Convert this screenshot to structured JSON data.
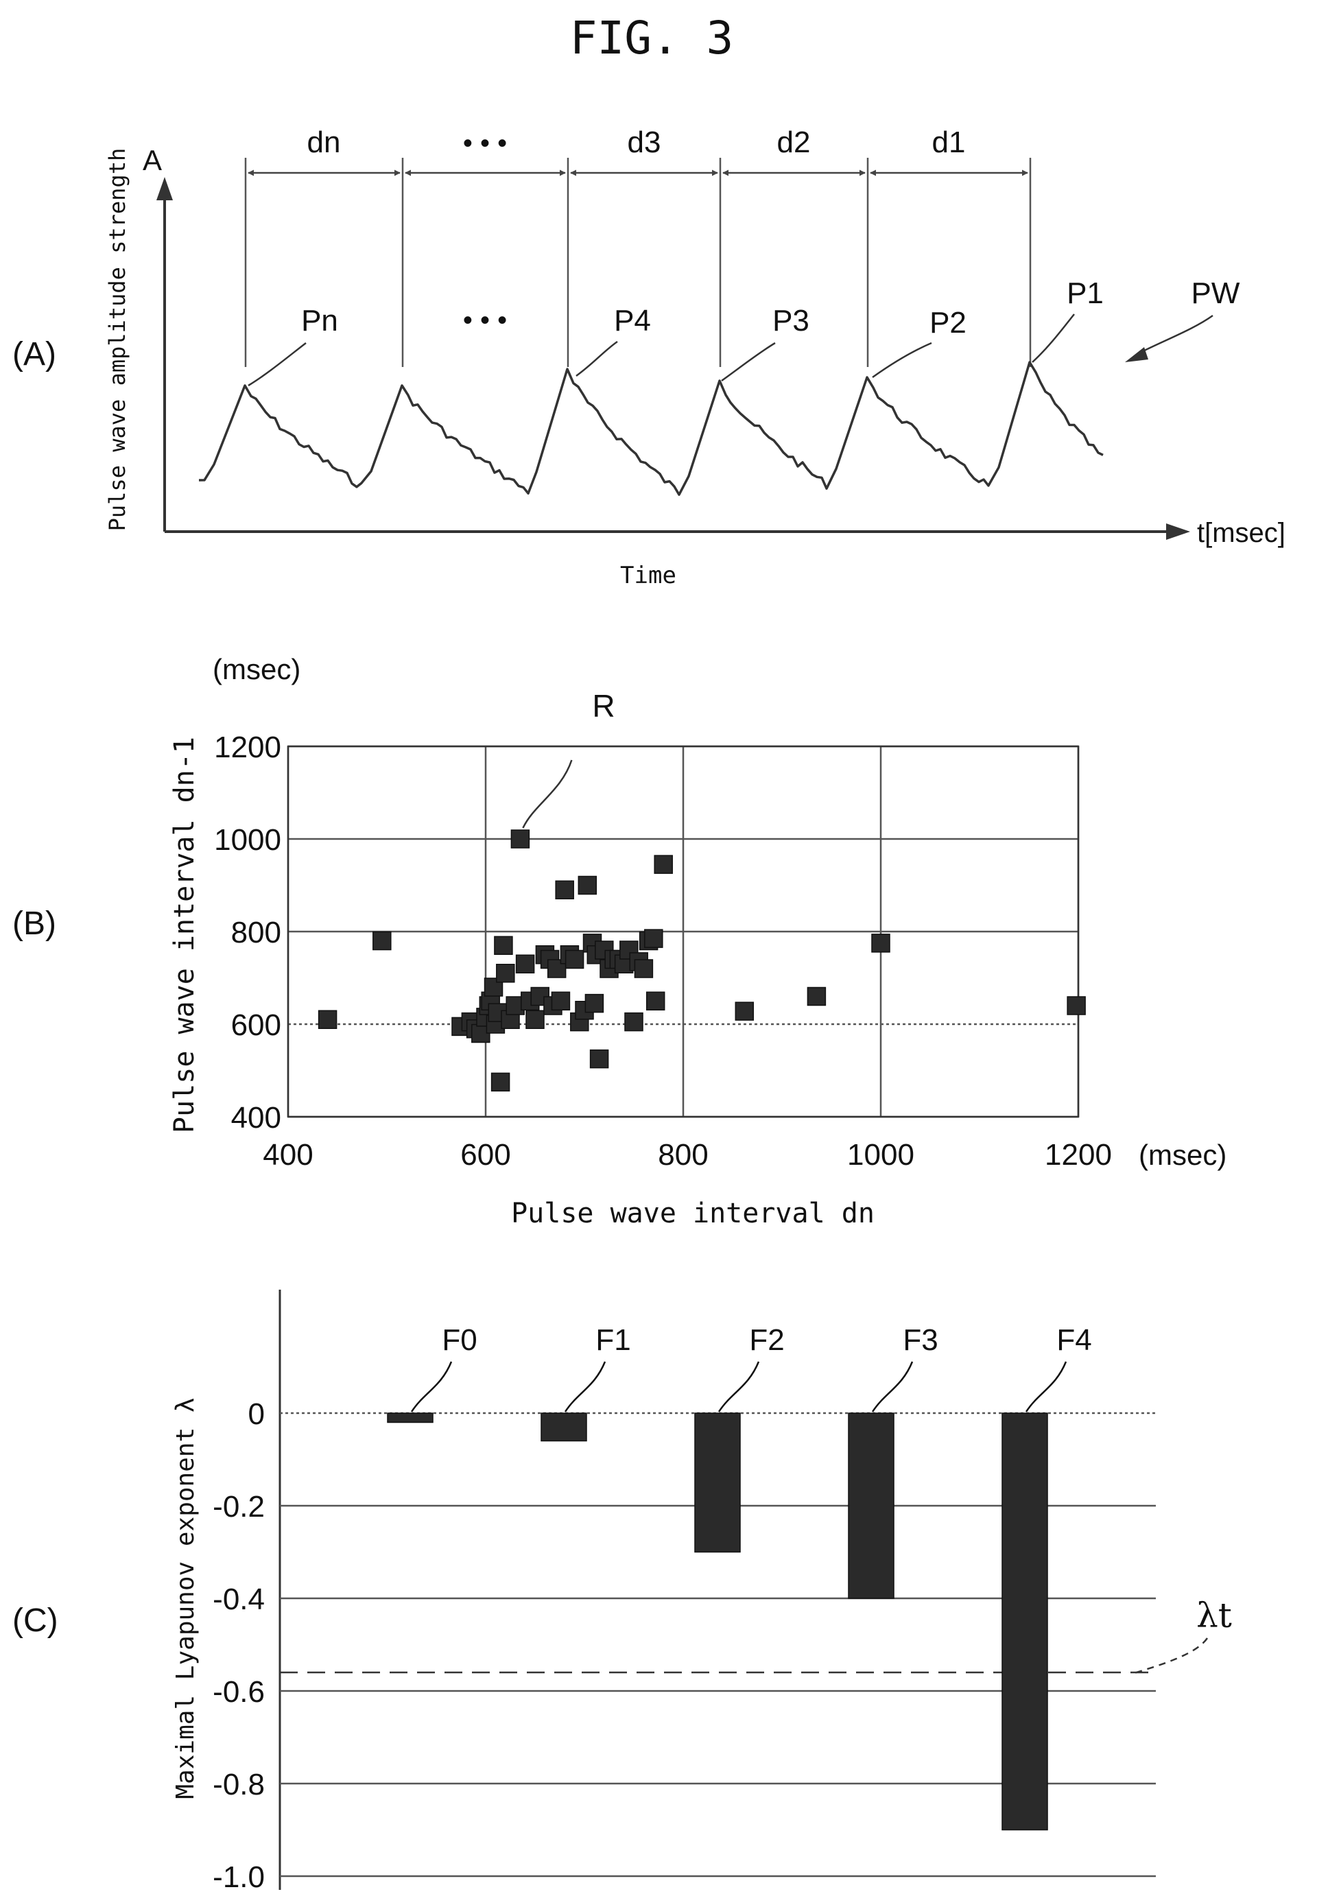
{
  "figure_title": "FIG. 3",
  "colors": {
    "ink": "#111111",
    "mark": "#2a2a2a",
    "grid": "#555555",
    "paper": "#ffffff"
  },
  "chart_data": [
    {
      "panel": "(A)",
      "type": "line",
      "xlabel": "Time",
      "ylabel": "Pulse wave amplitude strength",
      "y_axis_letter": "A",
      "x_unit": "t[msec]",
      "curve_label": "PW",
      "peaks": [
        "Pn",
        "• • •",
        "P4",
        "P3",
        "P2",
        "P1"
      ],
      "intervals": [
        "dn",
        "• • •",
        "d3",
        "d2",
        "d1"
      ]
    },
    {
      "panel": "(B)",
      "type": "scatter",
      "xlabel": "Pulse wave interval dn",
      "ylabel": "Pulse wave interval dn-1",
      "x_unit": "(msec)",
      "y_unit": "(msec)",
      "xlim": [
        400,
        1200
      ],
      "ylim": [
        400,
        1200
      ],
      "xticks": [
        "400",
        "600",
        "800",
        "1000",
        "1200"
      ],
      "yticks": [
        "400",
        "600",
        "800",
        "1000",
        "1200"
      ],
      "grid": true,
      "annotation": "R",
      "annotated_point": [
        635,
        1000
      ],
      "points": [
        [
          440,
          610
        ],
        [
          495,
          780
        ],
        [
          575,
          595
        ],
        [
          585,
          605
        ],
        [
          590,
          590
        ],
        [
          595,
          580
        ],
        [
          600,
          615
        ],
        [
          603,
          640
        ],
        [
          605,
          650
        ],
        [
          608,
          680
        ],
        [
          610,
          600
        ],
        [
          612,
          625
        ],
        [
          615,
          475
        ],
        [
          618,
          770
        ],
        [
          620,
          710
        ],
        [
          625,
          610
        ],
        [
          630,
          640
        ],
        [
          635,
          1000
        ],
        [
          640,
          730
        ],
        [
          645,
          650
        ],
        [
          650,
          610
        ],
        [
          655,
          660
        ],
        [
          660,
          750
        ],
        [
          665,
          740
        ],
        [
          668,
          640
        ],
        [
          672,
          720
        ],
        [
          676,
          650
        ],
        [
          680,
          890
        ],
        [
          685,
          750
        ],
        [
          690,
          740
        ],
        [
          695,
          605
        ],
        [
          700,
          630
        ],
        [
          703,
          900
        ],
        [
          708,
          775
        ],
        [
          710,
          645
        ],
        [
          712,
          750
        ],
        [
          715,
          525
        ],
        [
          720,
          760
        ],
        [
          725,
          720
        ],
        [
          730,
          740
        ],
        [
          735,
          740
        ],
        [
          740,
          730
        ],
        [
          745,
          760
        ],
        [
          750,
          605
        ],
        [
          755,
          735
        ],
        [
          760,
          720
        ],
        [
          765,
          780
        ],
        [
          770,
          785
        ],
        [
          772,
          650
        ],
        [
          780,
          945
        ],
        [
          862,
          628
        ],
        [
          935,
          660
        ],
        [
          1000,
          775
        ],
        [
          1198,
          640
        ]
      ]
    },
    {
      "panel": "(C)",
      "type": "bar",
      "ylabel": "Maximal Lyapunov exponent λ",
      "ylim": [
        -1.0,
        0
      ],
      "yticks": [
        "0",
        "-0.2",
        "-0.4",
        "-0.6",
        "-0.8",
        "-1.0"
      ],
      "categories": [
        "F0",
        "F1",
        "F2",
        "F3",
        "F4"
      ],
      "values": [
        -0.02,
        -0.06,
        -0.3,
        -0.4,
        -0.9
      ],
      "threshold": {
        "label": "λt",
        "value": -0.56
      }
    }
  ]
}
